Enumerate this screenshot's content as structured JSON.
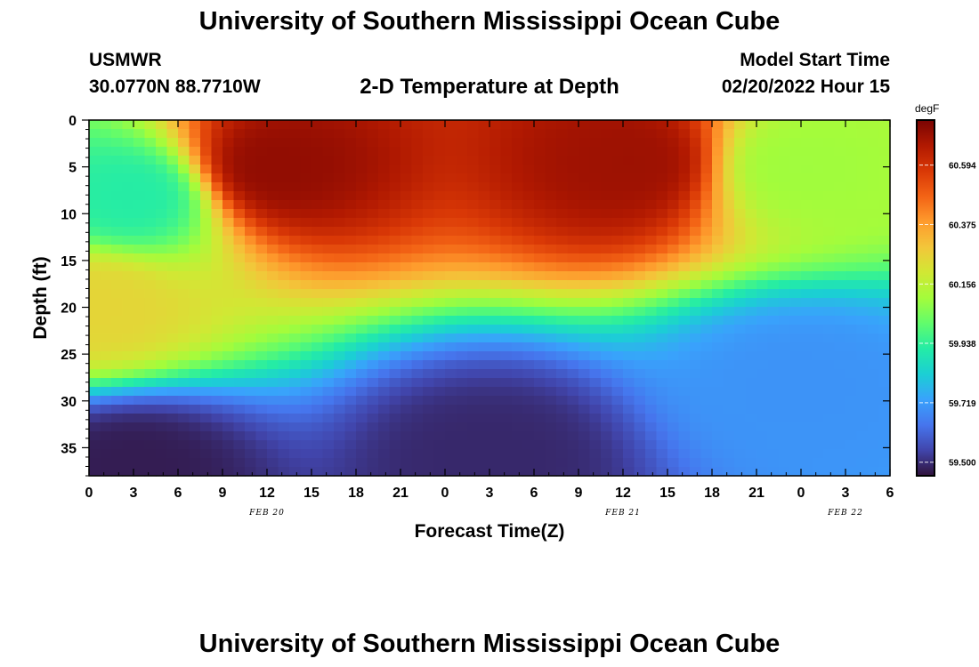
{
  "header": {
    "title": "University of Southern Mississippi Ocean Cube",
    "station": "USMWR",
    "coords": "30.0770N  88.7710W",
    "subtitle": "2-D Temperature at Depth",
    "model_label": "Model Start Time",
    "model_time": "02/20/2022 Hour 15"
  },
  "footer": {
    "title": "University of Southern Mississippi Ocean Cube"
  },
  "colorbar": {
    "unit": "degF",
    "labels": [
      "60.594",
      "60.375",
      "60.156",
      "59.938",
      "59.719",
      "59.500"
    ],
    "colors": [
      "#30123b",
      "#4145ab",
      "#4675ed",
      "#39a2fc",
      "#1bcfd4",
      "#24eca6",
      "#61fc6c",
      "#a4fc3b",
      "#d1e834",
      "#f3c63a",
      "#fe9b2d",
      "#f36315",
      "#d93806",
      "#b11901",
      "#7a0403"
    ]
  },
  "chart_data": {
    "type": "heatmap",
    "title": "2-D Temperature at Depth",
    "xlabel": "Forecast Time(Z)",
    "ylabel": "Depth (ft)",
    "x_tick_labels": [
      "0",
      "3",
      "6",
      "9",
      "12",
      "15",
      "18",
      "21",
      "0",
      "3",
      "6",
      "9",
      "12",
      "15",
      "18",
      "21",
      "0",
      "3",
      "6"
    ],
    "x_range_hours": [
      0,
      54
    ],
    "date_labels": [
      {
        "text": "FEB 20",
        "hour": 12
      },
      {
        "text": "FEB 21",
        "hour": 36
      },
      {
        "text": "FEB 22",
        "hour": 51
      }
    ],
    "y_tick_labels": [
      "0",
      "5",
      "10",
      "15",
      "20",
      "25",
      "30",
      "35"
    ],
    "y_range_ft": [
      0,
      38
    ],
    "value_range_degF": [
      59.45,
      60.76
    ],
    "features": [
      {
        "desc": "warm core",
        "t": 12.5,
        "depth": 5,
        "value": 60.72
      },
      {
        "desc": "warm core",
        "t": 36.5,
        "depth": 4.5,
        "value": 60.7
      },
      {
        "desc": "cool surface",
        "t": 3,
        "depth": 8,
        "value": 59.92
      },
      {
        "desc": "warm lens",
        "t": 0.5,
        "depth": 20,
        "value": 60.25
      },
      {
        "desc": "cold bottom",
        "t": 3,
        "depth": 37,
        "value": 59.47
      },
      {
        "desc": "cold bottom",
        "t": 27,
        "depth": 36,
        "value": 59.49
      },
      {
        "desc": "cool deep",
        "t": 48,
        "depth": 28,
        "value": 59.7
      },
      {
        "desc": "mid surface",
        "t": 48,
        "depth": 5,
        "value": 60.1
      }
    ]
  }
}
